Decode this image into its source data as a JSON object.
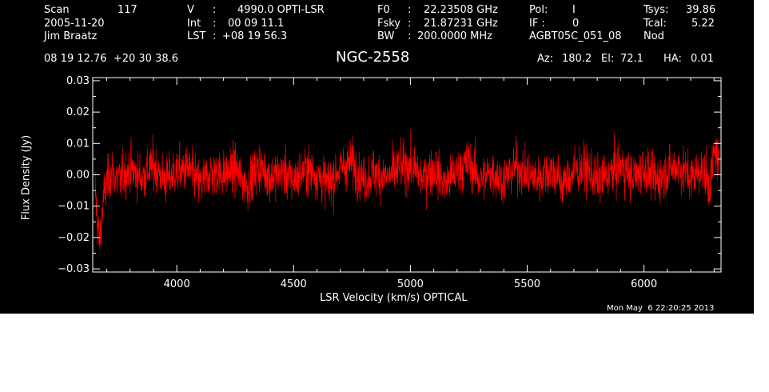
{
  "header": {
    "col1": [
      {
        "label": "Scan",
        "value": "117"
      },
      {
        "label": "2005-11-20"
      },
      {
        "label": "Jim Braatz"
      }
    ],
    "col2": [
      {
        "label": "V",
        "sep": ":",
        "value": "4990.0 OPTI-LSR"
      },
      {
        "label": "Int",
        "sep": ":",
        "value": "00 09 11.1"
      },
      {
        "label": "LST",
        "sep": ":",
        "value": "+08 19 56.3"
      }
    ],
    "col3": [
      {
        "label": "F0",
        "sep": ":",
        "value": "22.23508 GHz"
      },
      {
        "label": "Fsky",
        "sep": ":",
        "value": "21.87231 GHz"
      },
      {
        "label": "BW",
        "sep": ":",
        "value": "200.0000 MHz"
      }
    ],
    "col4": [
      {
        "label": "Pol:",
        "value": "I"
      },
      {
        "label": "IF :",
        "value": "0"
      },
      {
        "label": "AGBT05C_051_08",
        "value": "Nod"
      }
    ],
    "col5": [
      {
        "label": "Tsys:",
        "value": "39.86"
      },
      {
        "label": "Tcal:",
        "value": "5.22"
      }
    ],
    "coords": "08 19 12.76  +20 30 38.6",
    "source": "NGC-2558",
    "az_label": "Az:",
    "az": "180.2",
    "el_label": "El:",
    "el": "72.1",
    "ha_label": "HA:",
    "ha": "0.01",
    "timestamp": "Mon May  6 22:20:25 2013"
  },
  "colors": {
    "background": "#000000",
    "axes": "#ffffff",
    "trace": "#ff0000"
  },
  "chart_data": {
    "type": "line",
    "title": "NGC-2558",
    "xlabel": "LSR Velocity (km/s) OPTICAL",
    "ylabel": "Flux Density (Jy)",
    "xlim": [
      3640,
      6330
    ],
    "ylim": [
      -0.031,
      0.031
    ],
    "xticks": [
      4000,
      4500,
      5000,
      5500,
      6000
    ],
    "xtick_labels": [
      "4000",
      "4500",
      "5000",
      "5500",
      "6000"
    ],
    "yticks": [
      -0.03,
      -0.02,
      -0.01,
      0.0,
      0.01,
      0.02,
      0.03
    ],
    "ytick_labels": [
      "−0.03",
      "−0.02",
      "−0.01",
      "0.00",
      "0.01",
      "0.02",
      "0.03"
    ],
    "grid": false,
    "series": [
      {
        "x": [
          3650,
          3660,
          3670,
          3680,
          3690,
          3700,
          3720,
          3750,
          3800,
          3850,
          3900,
          3950,
          4000,
          4050,
          4100,
          4150,
          4200,
          4250,
          4300,
          4350,
          4400,
          4450,
          4500,
          4550,
          4600,
          4650,
          4700,
          4750,
          4800,
          4850,
          4900,
          4950,
          5000,
          5050,
          5100,
          5150,
          5200,
          5250,
          5300,
          5350,
          5400,
          5450,
          5500,
          5550,
          5600,
          5650,
          5700,
          5750,
          5800,
          5850,
          5900,
          5950,
          6000,
          6050,
          6100,
          6150,
          6200,
          6250,
          6280,
          6300,
          6310,
          6320
        ],
        "y": [
          -0.004,
          -0.015,
          -0.022,
          -0.012,
          -0.006,
          -0.003,
          0.001,
          -0.002,
          0.002,
          -0.001,
          0.003,
          -0.002,
          0.001,
          0.002,
          -0.003,
          0.001,
          0.0,
          0.002,
          -0.004,
          0.003,
          -0.001,
          0.001,
          -0.002,
          0.002,
          0.0,
          -0.003,
          0.002,
          0.004,
          -0.002,
          0.001,
          -0.001,
          0.002,
          0.003,
          -0.001,
          0.002,
          -0.003,
          0.001,
          0.004,
          -0.002,
          0.001,
          -0.002,
          0.003,
          0.0,
          -0.001,
          0.002,
          -0.003,
          0.001,
          0.002,
          -0.002,
          0.0,
          0.003,
          -0.001,
          0.002,
          -0.002,
          0.001,
          0.003,
          -0.001,
          0.002,
          -0.004,
          0.006,
          0.008,
          0.002
        ],
        "noise_rms": 0.006
      }
    ]
  }
}
